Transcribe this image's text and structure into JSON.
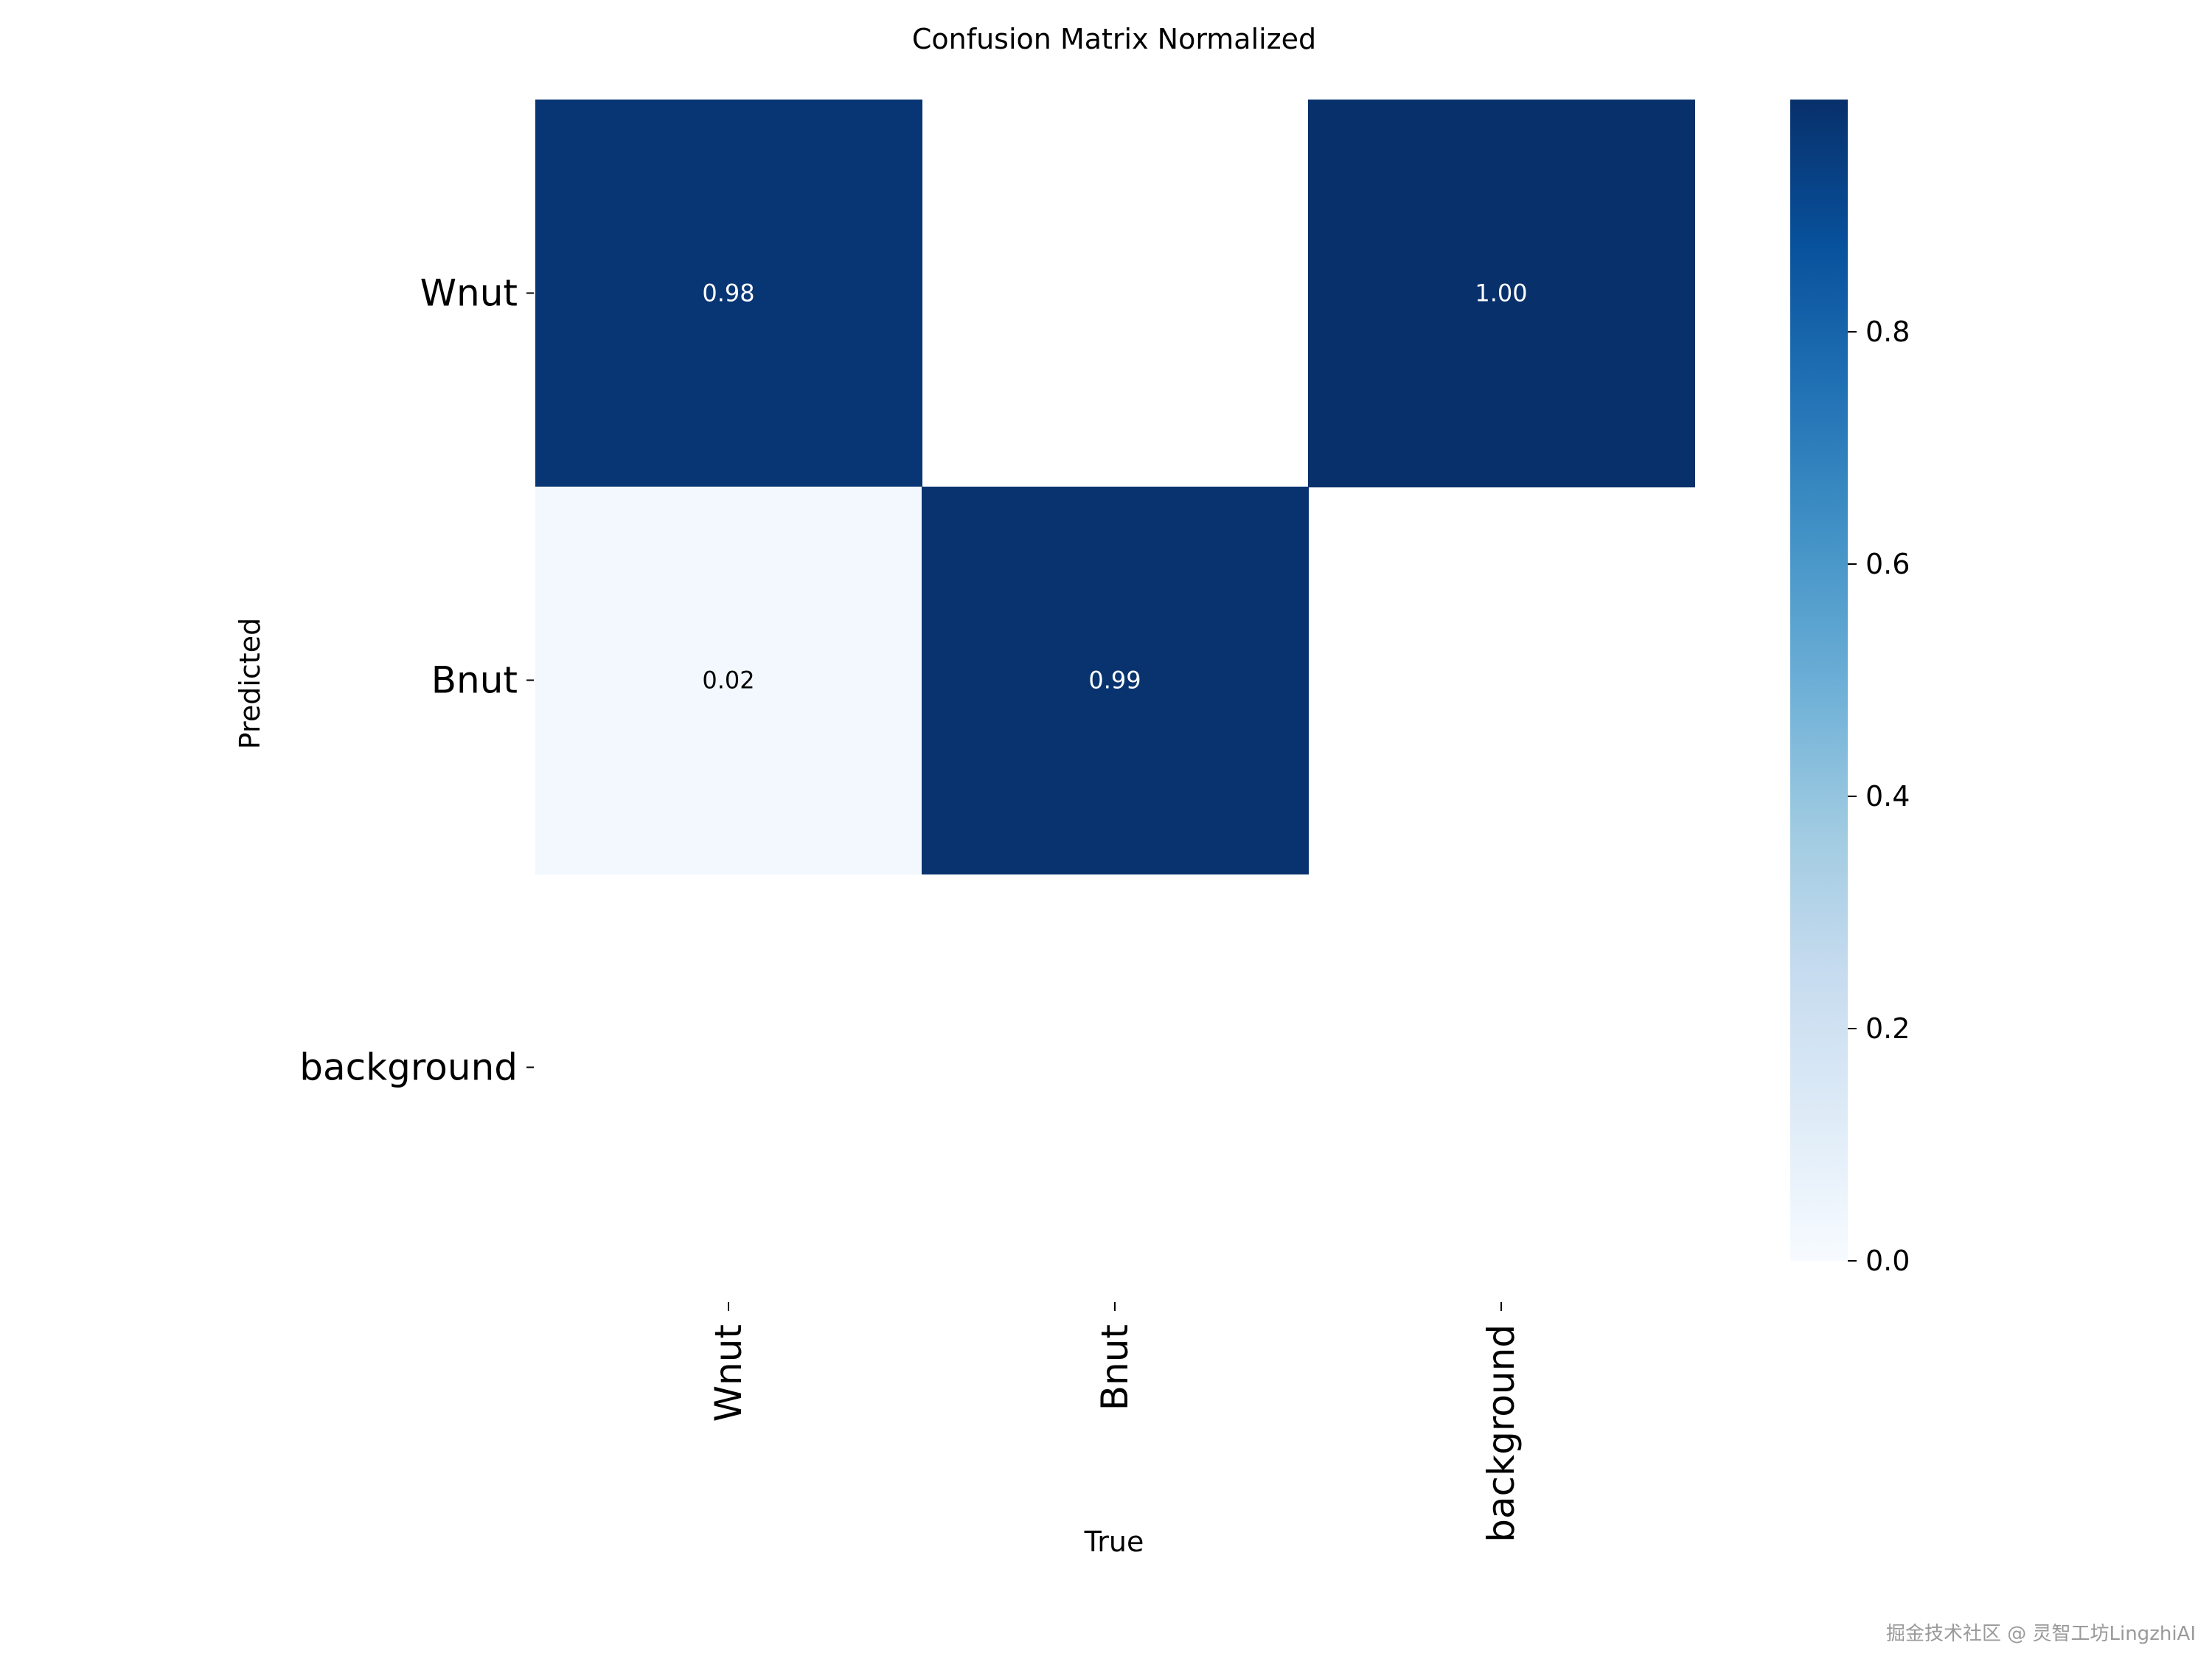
{
  "chart_data": {
    "type": "heatmap",
    "title": "Confusion Matrix Normalized",
    "xlabel": "True",
    "ylabel": "Predicted",
    "x_categories": [
      "Wnut",
      "Bnut",
      "background"
    ],
    "y_categories": [
      "Wnut",
      "Bnut",
      "background"
    ],
    "values": [
      [
        0.98,
        null,
        1.0
      ],
      [
        0.02,
        0.99,
        null
      ],
      [
        null,
        null,
        null
      ]
    ],
    "value_labels": [
      [
        "0.98",
        "",
        "1.00"
      ],
      [
        "0.02",
        "0.99",
        ""
      ],
      [
        "",
        "",
        ""
      ]
    ],
    "colormap": "Blues",
    "colorbar": {
      "range": [
        0.0,
        1.0
      ],
      "ticks": [
        0.0,
        0.2,
        0.4,
        0.6,
        0.8
      ],
      "tick_labels": [
        "0.0",
        "0.2",
        "0.4",
        "0.6",
        "0.8"
      ]
    }
  },
  "watermark": "掘金技术社区 @ 灵智工坊LingzhiAI"
}
